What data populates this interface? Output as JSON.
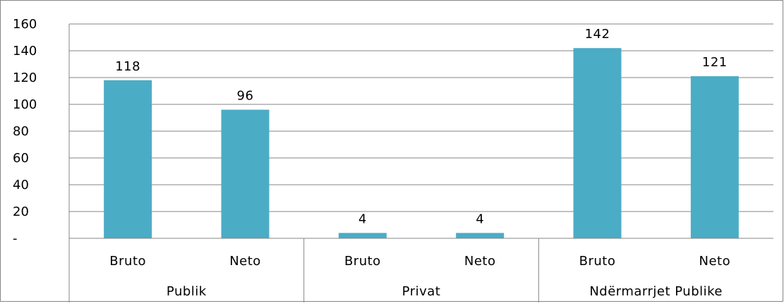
{
  "chart_data": {
    "type": "bar",
    "groups": [
      {
        "label": "Publik",
        "categories": [
          "Bruto",
          "Neto"
        ],
        "values": [
          118,
          96
        ],
        "data_labels": [
          "118",
          "96"
        ]
      },
      {
        "label": "Privat",
        "categories": [
          "Bruto",
          "Neto"
        ],
        "values": [
          4,
          4
        ],
        "data_labels": [
          "4",
          "4"
        ]
      },
      {
        "label": "Ndërmarrjet Publike",
        "categories": [
          "Bruto",
          "Neto"
        ],
        "values": [
          142,
          121
        ],
        "data_labels": [
          "142",
          "121"
        ]
      }
    ],
    "ylim": [
      0,
      160
    ],
    "yticks": [
      0,
      20,
      40,
      60,
      80,
      100,
      120,
      140,
      160
    ],
    "ytick_labels": [
      "-",
      "20",
      "40",
      "60",
      "80",
      "100",
      "120",
      "140",
      "160"
    ],
    "title": "",
    "xlabel": "",
    "ylabel": "",
    "grid": true,
    "legend": "none",
    "colors": {
      "bar": "#4bacc6",
      "grid": "#868686",
      "axis": "#868686",
      "border": "#868686",
      "text": "#000000"
    }
  }
}
